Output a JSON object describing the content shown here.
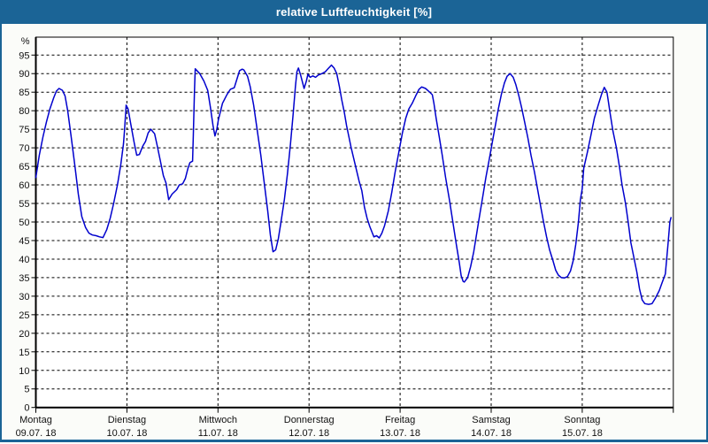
{
  "window": {
    "title": "relative Luftfeuchtigkeit [%]",
    "titlebar_color": "#1B6496",
    "content_background": "#FBFCF9"
  },
  "chart_data": {
    "type": "line",
    "title": "relative Luftfeuchtigkeit [%]",
    "unit_label": "%",
    "ylim": [
      0,
      100
    ],
    "ytick_values": [
      0,
      5,
      10,
      15,
      20,
      25,
      30,
      35,
      40,
      45,
      50,
      55,
      60,
      65,
      70,
      75,
      80,
      85,
      90,
      95
    ],
    "grid": "dashed",
    "legend": "none",
    "plot_background": "#FFFFFF",
    "line_color": "#0000CD",
    "x_axis_days": [
      {
        "weekday": "Montag",
        "date": "09.07. 18"
      },
      {
        "weekday": "Dienstag",
        "date": "10.07. 18"
      },
      {
        "weekday": "Mittwoch",
        "date": "11.07. 18"
      },
      {
        "weekday": "Donnerstag",
        "date": "12.07. 18"
      },
      {
        "weekday": "Freitag",
        "date": "13.07. 18"
      },
      {
        "weekday": "Samstag",
        "date": "14.07. 18"
      },
      {
        "weekday": "Sonntag",
        "date": "15.07. 18"
      }
    ],
    "x_unit": "hours since Montag 00:00 (0-168)",
    "series": [
      {
        "name": "relative Luftfeuchtigkeit",
        "points": [
          [
            0,
            62
          ],
          [
            0.9,
            68
          ],
          [
            1.9,
            73
          ],
          [
            2.8,
            77
          ],
          [
            3.7,
            80.5
          ],
          [
            4.7,
            83.5
          ],
          [
            5.4,
            85.3
          ],
          [
            6.1,
            86
          ],
          [
            7,
            85.5
          ],
          [
            7.7,
            84
          ],
          [
            8.4,
            80
          ],
          [
            9.3,
            73
          ],
          [
            10.3,
            65
          ],
          [
            11.2,
            57.5
          ],
          [
            12.1,
            51.5
          ],
          [
            13.1,
            48.5
          ],
          [
            14,
            47
          ],
          [
            14.9,
            46.5
          ],
          [
            15.9,
            46.3
          ],
          [
            16.8,
            46
          ],
          [
            17.7,
            45.8
          ],
          [
            18.7,
            48
          ],
          [
            19.6,
            51
          ],
          [
            20.5,
            55
          ],
          [
            21.5,
            60
          ],
          [
            22.4,
            65.5
          ],
          [
            23.1,
            71
          ],
          [
            23.4,
            75
          ],
          [
            23.8,
            81.5
          ],
          [
            24.3,
            80.5
          ],
          [
            25,
            76.5
          ],
          [
            25.9,
            71.5
          ],
          [
            26.6,
            68
          ],
          [
            27.3,
            68.2
          ],
          [
            28.2,
            70.5
          ],
          [
            28.9,
            71.7
          ],
          [
            29.6,
            74
          ],
          [
            30.3,
            75
          ],
          [
            31.3,
            73.8
          ],
          [
            32,
            70.5
          ],
          [
            32.9,
            66
          ],
          [
            33.6,
            62.5
          ],
          [
            34.3,
            60.5
          ],
          [
            35,
            56
          ],
          [
            35.9,
            57.5
          ],
          [
            37.1,
            58.7
          ],
          [
            37.8,
            60
          ],
          [
            38.7,
            60.3
          ],
          [
            39.4,
            61.7
          ],
          [
            40.1,
            64.5
          ],
          [
            40.6,
            66
          ],
          [
            41.3,
            66.4
          ],
          [
            41.5,
            73
          ],
          [
            41.8,
            85
          ],
          [
            42,
            91.3
          ],
          [
            43.2,
            90
          ],
          [
            44.3,
            88
          ],
          [
            45.3,
            85.5
          ],
          [
            46,
            81
          ],
          [
            46.7,
            76
          ],
          [
            47.2,
            73.2
          ],
          [
            47.7,
            75
          ],
          [
            48.1,
            77.5
          ],
          [
            49.2,
            82
          ],
          [
            50.4,
            84.4
          ],
          [
            51.3,
            85.8
          ],
          [
            52.3,
            86.2
          ],
          [
            53,
            88.5
          ],
          [
            53.7,
            90.8
          ],
          [
            54.4,
            91.2
          ],
          [
            54.8,
            91
          ],
          [
            55.8,
            89.3
          ],
          [
            56.5,
            86.5
          ],
          [
            57.4,
            81.5
          ],
          [
            58.3,
            75
          ],
          [
            59.3,
            68
          ],
          [
            60.2,
            60.5
          ],
          [
            61.1,
            53
          ],
          [
            61.8,
            46.5
          ],
          [
            62.5,
            42
          ],
          [
            63.2,
            42.5
          ],
          [
            63.9,
            45.5
          ],
          [
            64.6,
            50
          ],
          [
            65.5,
            56
          ],
          [
            66.3,
            63
          ],
          [
            67.1,
            71
          ],
          [
            67.8,
            79
          ],
          [
            68.4,
            86.5
          ],
          [
            68.8,
            90.5
          ],
          [
            69.2,
            91.5
          ],
          [
            69.8,
            89.5
          ],
          [
            70.7,
            86
          ],
          [
            71.3,
            88
          ],
          [
            71.7,
            89.8
          ],
          [
            72.3,
            89
          ],
          [
            73,
            89.4
          ],
          [
            73.7,
            89
          ],
          [
            74.4,
            89.6
          ],
          [
            75.4,
            90
          ],
          [
            76.3,
            90.5
          ],
          [
            77,
            91.3
          ],
          [
            77.9,
            92.3
          ],
          [
            78.6,
            91.5
          ],
          [
            79.3,
            90
          ],
          [
            80,
            86.5
          ],
          [
            80.6,
            83
          ],
          [
            81.3,
            79.5
          ],
          [
            81.9,
            76
          ],
          [
            82.5,
            73
          ],
          [
            83.1,
            70
          ],
          [
            83.8,
            67
          ],
          [
            84.5,
            64
          ],
          [
            85.2,
            61
          ],
          [
            85.9,
            58.5
          ],
          [
            86.6,
            54
          ],
          [
            87.3,
            51
          ],
          [
            88,
            48.8
          ],
          [
            88.7,
            47
          ],
          [
            89.1,
            46
          ],
          [
            89.8,
            46.3
          ],
          [
            90.5,
            45.7
          ],
          [
            91.2,
            47
          ],
          [
            91.9,
            49
          ],
          [
            92.9,
            53
          ],
          [
            93.8,
            58
          ],
          [
            94.7,
            63.5
          ],
          [
            95.7,
            69
          ],
          [
            96.6,
            74
          ],
          [
            97.5,
            78
          ],
          [
            98.3,
            80.5
          ],
          [
            99.2,
            82
          ],
          [
            100.1,
            84
          ],
          [
            101,
            85.8
          ],
          [
            101.7,
            86.4
          ],
          [
            102.7,
            86
          ],
          [
            103.6,
            85.2
          ],
          [
            104.5,
            84.3
          ],
          [
            104.9,
            82
          ],
          [
            105.5,
            78
          ],
          [
            106.3,
            73
          ],
          [
            107.1,
            68
          ],
          [
            108,
            62
          ],
          [
            109,
            56
          ],
          [
            109.9,
            50
          ],
          [
            110.8,
            44
          ],
          [
            111.6,
            39
          ],
          [
            112.1,
            35.5
          ],
          [
            112.6,
            34
          ],
          [
            112.9,
            33.8
          ],
          [
            113.8,
            35
          ],
          [
            114.6,
            38
          ],
          [
            115.4,
            42
          ],
          [
            116.2,
            47
          ],
          [
            117,
            52
          ],
          [
            117.8,
            57
          ],
          [
            118.6,
            62
          ],
          [
            119.5,
            67
          ],
          [
            120.3,
            71.5
          ],
          [
            121.1,
            76
          ],
          [
            121.9,
            80.5
          ],
          [
            122.7,
            84.5
          ],
          [
            123.5,
            87.5
          ],
          [
            124.2,
            89.3
          ],
          [
            125,
            90
          ],
          [
            125.8,
            89
          ],
          [
            126.5,
            87
          ],
          [
            127.3,
            84
          ],
          [
            128.1,
            80.5
          ],
          [
            128.9,
            76.5
          ],
          [
            129.7,
            72.5
          ],
          [
            130.5,
            68
          ],
          [
            131.4,
            63.5
          ],
          [
            132.2,
            59
          ],
          [
            133,
            54.5
          ],
          [
            133.8,
            50
          ],
          [
            134.6,
            46
          ],
          [
            135.4,
            42.5
          ],
          [
            136.3,
            39.5
          ],
          [
            137,
            37
          ],
          [
            137.7,
            35.7
          ],
          [
            138.5,
            35
          ],
          [
            139.3,
            34.9
          ],
          [
            140.1,
            35.3
          ],
          [
            140.9,
            36.8
          ],
          [
            141.6,
            39.5
          ],
          [
            142.3,
            44
          ],
          [
            143,
            50
          ],
          [
            143.5,
            56
          ],
          [
            144,
            59
          ],
          [
            144.4,
            64.5
          ],
          [
            145.4,
            69
          ],
          [
            146.3,
            73.5
          ],
          [
            147.2,
            78
          ],
          [
            148.2,
            81.5
          ],
          [
            149.1,
            84.5
          ],
          [
            149.8,
            86.3
          ],
          [
            150.5,
            85
          ],
          [
            150.8,
            83
          ],
          [
            151.4,
            79
          ],
          [
            152.1,
            74.5
          ],
          [
            153,
            70
          ],
          [
            153.8,
            65
          ],
          [
            154.5,
            60
          ],
          [
            155.4,
            55
          ],
          [
            156.1,
            50
          ],
          [
            156.8,
            44.5
          ],
          [
            157.7,
            40
          ],
          [
            158.4,
            36.5
          ],
          [
            159.1,
            32
          ],
          [
            159.8,
            29
          ],
          [
            160.5,
            28
          ],
          [
            161.5,
            27.8
          ],
          [
            162.4,
            28
          ],
          [
            163.3,
            29.5
          ],
          [
            164.3,
            31.5
          ],
          [
            165,
            33.5
          ],
          [
            165.9,
            36
          ],
          [
            166.6,
            44
          ],
          [
            167.1,
            50
          ],
          [
            167.4,
            51.2
          ]
        ]
      }
    ]
  }
}
